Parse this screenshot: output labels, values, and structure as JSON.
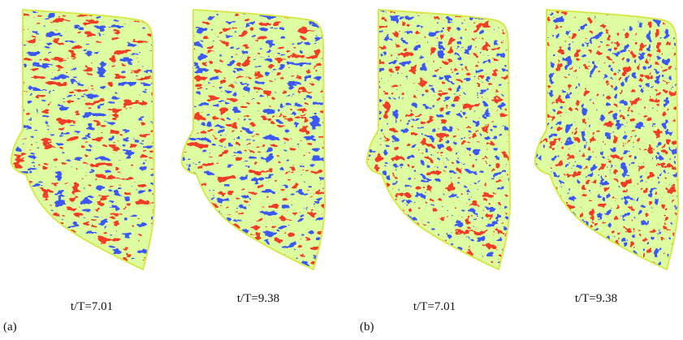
{
  "panels": [
    {
      "caption": "t/T=7.01"
    },
    {
      "caption": "t/T=9.38"
    },
    {
      "caption": "t/T=7.01"
    },
    {
      "caption": "t/T=9.38"
    }
  ],
  "groups": [
    {
      "label": "(a)"
    },
    {
      "label": "(b)"
    }
  ]
}
